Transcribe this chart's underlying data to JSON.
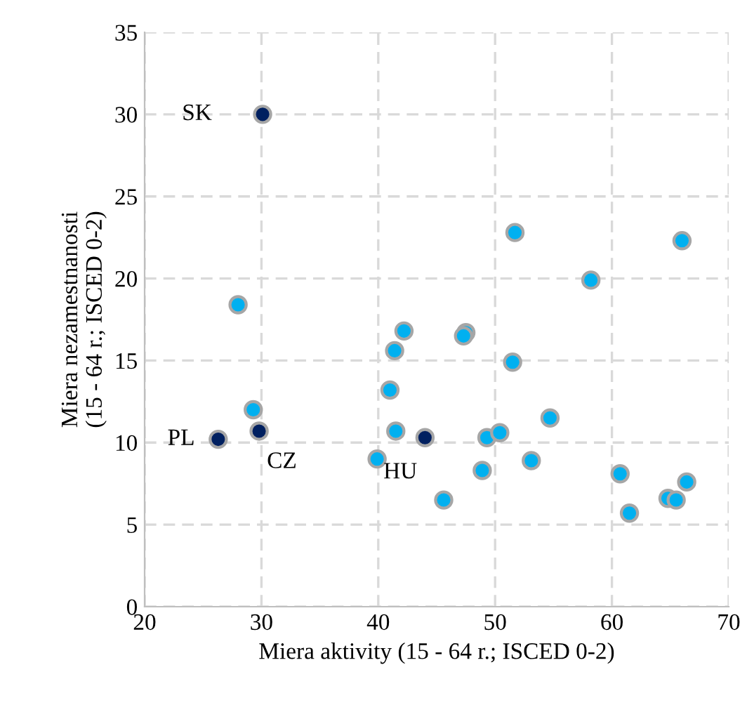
{
  "chart_data": {
    "type": "scatter",
    "xlabel": "Miera aktivity (15 - 64 r.; ISCED 0-2)",
    "ylabel": "Miera nezamestnanosti\n(15 - 64 r.; ISCED 0-2)",
    "xlim": [
      20,
      70
    ],
    "xticks": [
      20,
      30,
      40,
      50,
      60,
      70
    ],
    "ylim": [
      0,
      35
    ],
    "yticks": [
      0,
      5,
      10,
      15,
      20,
      25,
      30,
      35
    ],
    "grid": true,
    "marker": "circle",
    "legend": false,
    "series": [
      {
        "color": "#00b0f0",
        "x": [
          28.0,
          51.7,
          66.0,
          58.2,
          42.2,
          41.4,
          47.5,
          47.3,
          51.5,
          41.0,
          29.3,
          41.5,
          39.9,
          45.6,
          48.9,
          49.3,
          50.4,
          53.1,
          54.7,
          60.7,
          61.5,
          64.8,
          65.5,
          66.4
        ],
        "values": [
          18.4,
          22.8,
          22.3,
          19.9,
          16.8,
          15.6,
          16.7,
          16.5,
          14.9,
          13.2,
          12.0,
          10.7,
          9.0,
          6.5,
          8.3,
          10.3,
          10.6,
          8.9,
          11.5,
          8.1,
          5.7,
          6.6,
          6.5,
          7.6
        ]
      },
      {
        "color": "#002060",
        "x": [
          30.1,
          29.8,
          26.3,
          44.0
        ],
        "values": [
          30.0,
          10.7,
          10.2,
          10.3
        ]
      }
    ],
    "annotations": [
      {
        "text": "SK",
        "x": 30.1,
        "y": 30.0
      },
      {
        "text": "CZ",
        "x": 29.8,
        "y": 10.7
      },
      {
        "text": "PL",
        "x": 26.3,
        "y": 10.2
      },
      {
        "text": "HU",
        "x": 44.0,
        "y": 10.3
      }
    ]
  }
}
